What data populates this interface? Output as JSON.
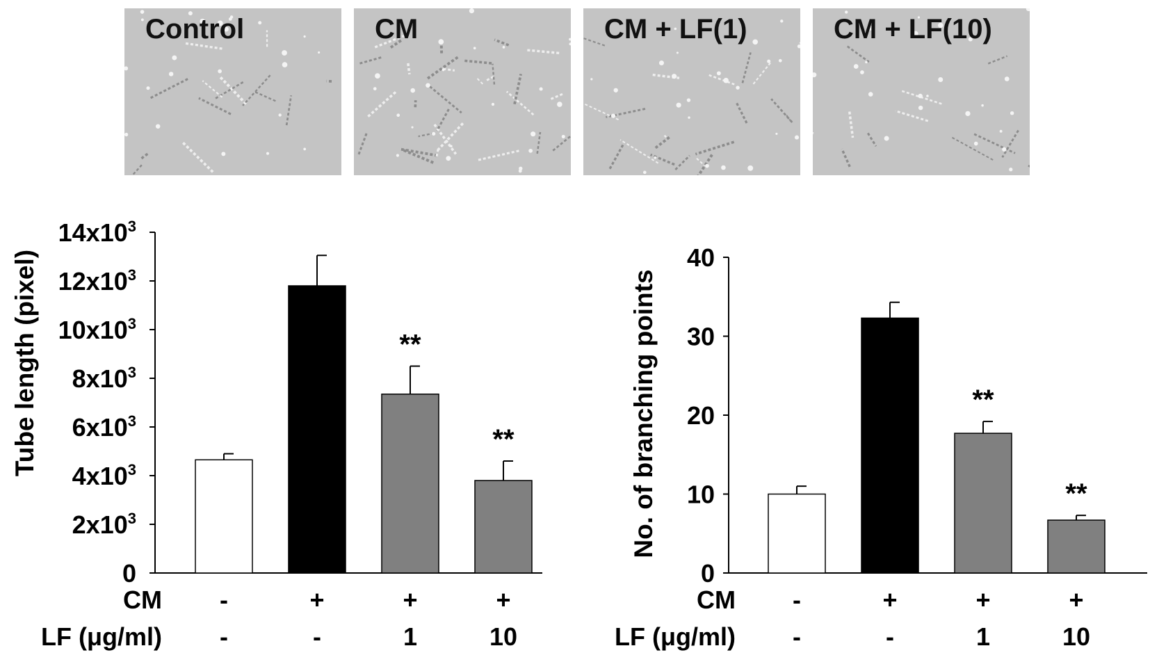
{
  "micrographs": [
    {
      "label": "Control"
    },
    {
      "label": "CM"
    },
    {
      "label": "CM + LF(1)"
    },
    {
      "label": "CM + LF(10)"
    }
  ],
  "row_labels": {
    "cm": "CM",
    "lf": "LF (μg/ml)"
  },
  "conditions": {
    "cm": [
      "-",
      "+",
      "+",
      "+"
    ],
    "lf": [
      "-",
      "-",
      "1",
      "10"
    ]
  },
  "bar_colors": [
    "#ffffff",
    "#000000",
    "#808080",
    "#808080"
  ],
  "chart_data": [
    {
      "type": "bar",
      "categories": [
        "Control",
        "CM",
        "CM + LF(1)",
        "CM + LF(10)"
      ],
      "values": [
        4650,
        11800,
        7350,
        3800
      ],
      "errors": [
        250,
        1250,
        1150,
        800
      ],
      "annotations": [
        "",
        "",
        "**",
        "**"
      ],
      "title": "",
      "xlabel": "",
      "ylabel": "Tube length (pixel)",
      "ylim": [
        0,
        14000
      ],
      "yticks": [
        0,
        2000,
        4000,
        6000,
        8000,
        10000,
        12000,
        14000
      ],
      "ytick_labels": [
        "0",
        "2x10",
        "4x10",
        "6x10",
        "8x10",
        "10x10",
        "12x10",
        "14x10"
      ],
      "ytick_exponent": "3",
      "grid": false
    },
    {
      "type": "bar",
      "categories": [
        "Control",
        "CM",
        "CM + LF(1)",
        "CM + LF(10)"
      ],
      "values": [
        10,
        32.3,
        17.7,
        6.7
      ],
      "errors": [
        1.0,
        2.0,
        1.5,
        0.6
      ],
      "annotations": [
        "",
        "",
        "**",
        "**"
      ],
      "title": "",
      "xlabel": "",
      "ylabel": "No. of branching points",
      "ylim": [
        0,
        40
      ],
      "yticks": [
        0,
        10,
        20,
        30,
        40
      ],
      "ytick_labels": [
        "0",
        "10",
        "20",
        "30",
        "40"
      ],
      "ytick_exponent": "",
      "grid": false
    }
  ]
}
